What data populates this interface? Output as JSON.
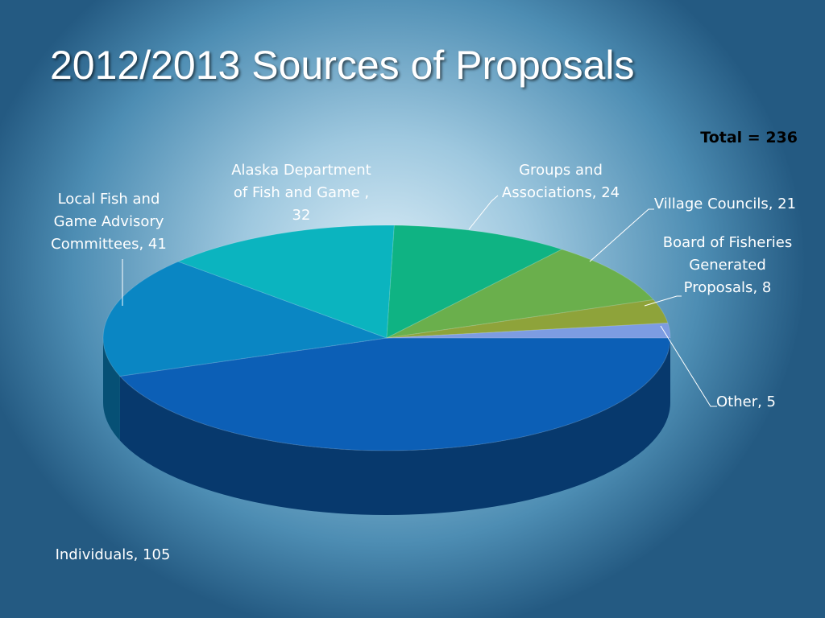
{
  "chart_data": {
    "type": "pie3d",
    "title": "2012/2013 Sources of Proposals",
    "annotation": "Total = 236",
    "values": [
      105,
      41,
      32,
      24,
      21,
      8,
      5
    ],
    "value_labels": [
      "Individuals, 105",
      "Local Fish and Game Advisory Committees, 41",
      "Alaska Department of Fish and Game , 32",
      "Groups and Associations, 24",
      "Village Councils, 21",
      "Board of Fisheries Generated Proposals, 8",
      "Other, 5"
    ],
    "colors": [
      "#0c5fb6",
      "#0a86c3",
      "#0bb4bf",
      "#0fb383",
      "#6aaf4c",
      "#8ea33a",
      "#7d9ce2"
    ]
  }
}
